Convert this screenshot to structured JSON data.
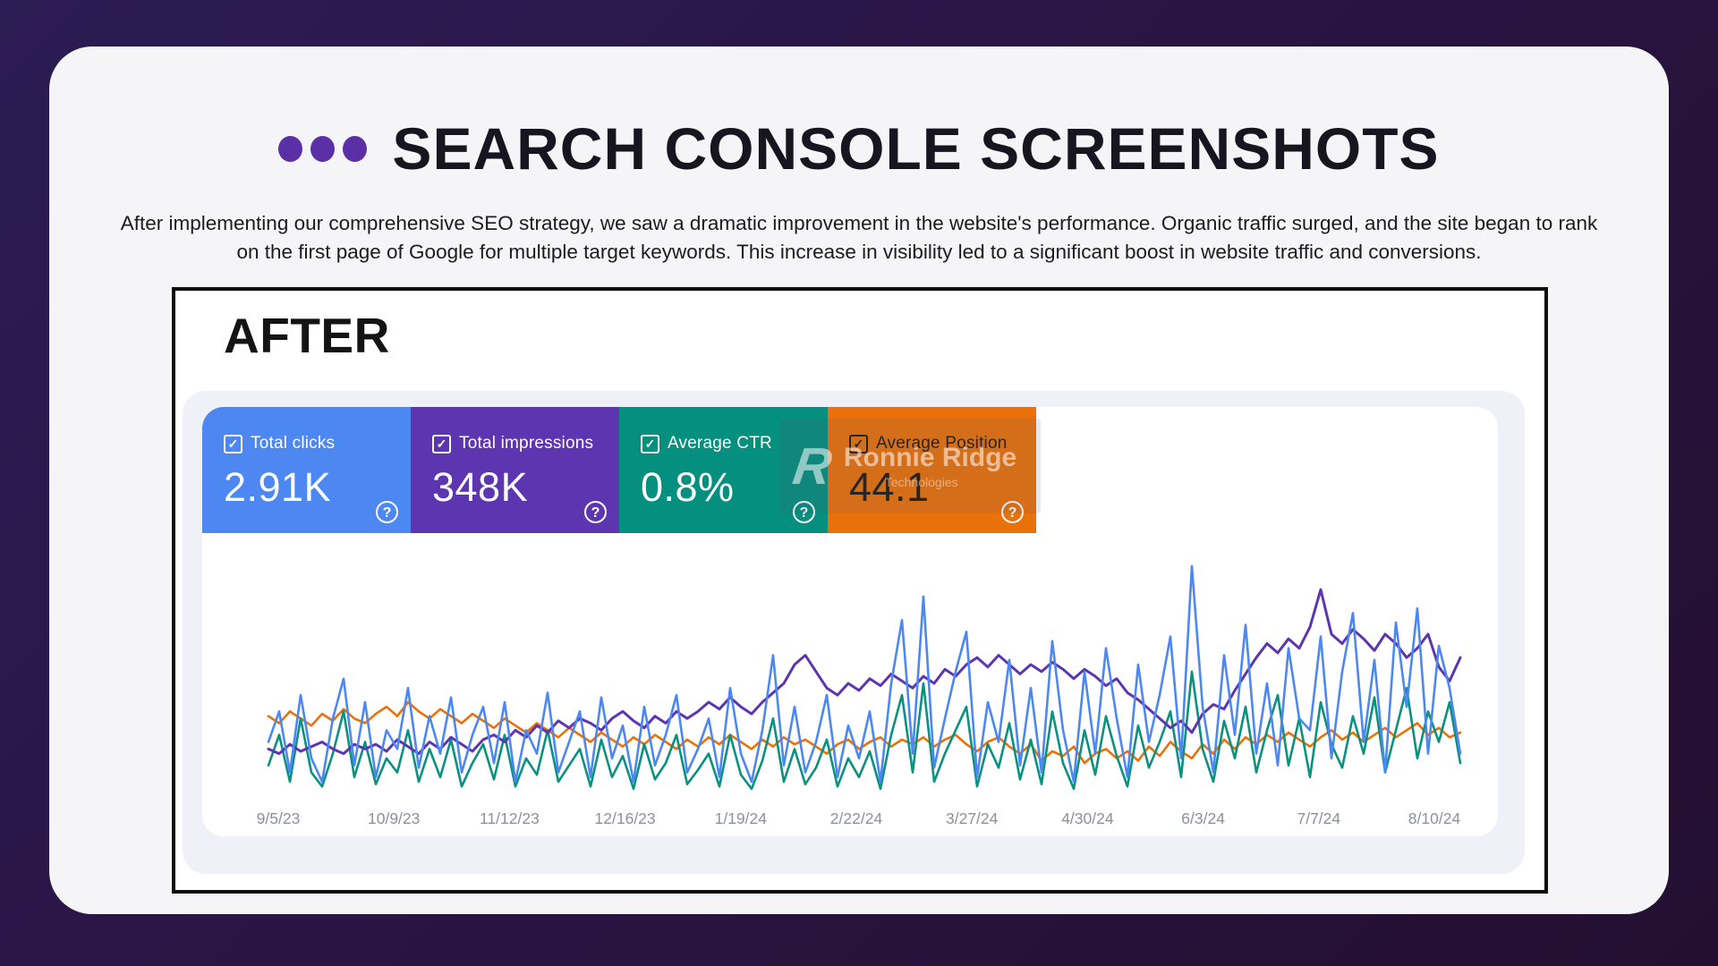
{
  "slide": {
    "title": "SEARCH CONSOLE SCREENSHOTS",
    "accent_color": "#5b2fa5",
    "description": "After implementing our comprehensive SEO strategy, we saw a dramatic improvement in the website's performance. Organic traffic surged, and the site began to rank on the first page of Google for multiple target keywords. This increase in visibility led to a significant boost in website traffic and conversions."
  },
  "screenshot": {
    "label": "AFTER",
    "watermark": {
      "logo": "R",
      "line1": "Ronnie Ridge",
      "line2": "Technologies"
    },
    "metrics": [
      {
        "label": "Total clicks",
        "value": "2.91K",
        "color": "#4d87f2",
        "text_color": "#ffffff",
        "checked": true,
        "help_icon": "?"
      },
      {
        "label": "Total impressions",
        "value": "348K",
        "color": "#5e35b1",
        "text_color": "#ffffff",
        "checked": true,
        "help_icon": "?"
      },
      {
        "label": "Average CTR",
        "value": "0.8%",
        "color": "#048f7e",
        "text_color": "#ffffff",
        "checked": true,
        "help_icon": "?"
      },
      {
        "label": "Average Position",
        "value": "44.1",
        "color": "#e8710a",
        "text_color": "#1d1d1d",
        "checked": true,
        "help_icon": "?"
      }
    ],
    "chart_data": {
      "type": "line",
      "title": "",
      "xlabel": "",
      "ylabel": "",
      "y_axis_visible": false,
      "grid": false,
      "legend_position": "metric-cards-above",
      "ylim": [
        0,
        100
      ],
      "x_tick_labels": [
        "9/5/23",
        "10/9/23",
        "11/12/23",
        "12/16/23",
        "1/19/24",
        "2/22/24",
        "3/27/24",
        "4/30/24",
        "6/3/24",
        "7/7/24",
        "8/10/24"
      ],
      "series": [
        {
          "name": "Total clicks",
          "color": "#4d87f2",
          "values": [
            25,
            38,
            12,
            45,
            18,
            8,
            35,
            52,
            15,
            42,
            10,
            30,
            22,
            48,
            14,
            36,
            20,
            44,
            12,
            28,
            40,
            16,
            42,
            8,
            30,
            20,
            46,
            12,
            25,
            38,
            10,
            44,
            18,
            32,
            8,
            40,
            15,
            28,
            45,
            12,
            22,
            35,
            10,
            48,
            20,
            8,
            30,
            62,
            15,
            40,
            12,
            25,
            45,
            10,
            32,
            18,
            38,
            8,
            50,
            77,
            20,
            87,
            14,
            35,
            55,
            72,
            10,
            42,
            25,
            60,
            15,
            48,
            12,
            68,
            30,
            8,
            55,
            20,
            65,
            35,
            10,
            58,
            25,
            45,
            70,
            18,
            100,
            40,
            12,
            62,
            28,
            75,
            20,
            50,
            15,
            65,
            35,
            30,
            70,
            18,
            55,
            80,
            25,
            60,
            12,
            76,
            40,
            82,
            20,
            66,
            48,
            20
          ]
        },
        {
          "name": "Total impressions",
          "color": "#5e35b1",
          "values": [
            22,
            20,
            24,
            21,
            23,
            25,
            22,
            20,
            24,
            22,
            24,
            21,
            26,
            23,
            20,
            25,
            22,
            27,
            24,
            21,
            26,
            28,
            25,
            30,
            27,
            32,
            29,
            34,
            31,
            35,
            33,
            30,
            35,
            38,
            34,
            31,
            36,
            33,
            38,
            35,
            38,
            42,
            39,
            44,
            40,
            37,
            42,
            46,
            50,
            58,
            62,
            55,
            48,
            45,
            50,
            47,
            52,
            49,
            54,
            51,
            48,
            53,
            50,
            56,
            53,
            58,
            61,
            57,
            62,
            58,
            54,
            58,
            55,
            59,
            56,
            52,
            56,
            53,
            49,
            52,
            46,
            43,
            39,
            35,
            31,
            34,
            29,
            37,
            41,
            39,
            47,
            54,
            61,
            67,
            63,
            69,
            65,
            74,
            90,
            71,
            67,
            73,
            69,
            64,
            71,
            67,
            61,
            65,
            71,
            57,
            51,
            61
          ]
        },
        {
          "name": "Average CTR",
          "color": "#0b9180",
          "values": [
            15,
            28,
            8,
            35,
            12,
            6,
            20,
            38,
            10,
            25,
            7,
            18,
            12,
            30,
            8,
            22,
            10,
            26,
            6,
            16,
            24,
            9,
            28,
            6,
            18,
            11,
            30,
            8,
            15,
            22,
            6,
            26,
            10,
            19,
            5,
            24,
            9,
            16,
            28,
            7,
            13,
            20,
            6,
            28,
            11,
            5,
            17,
            35,
            8,
            22,
            7,
            14,
            26,
            6,
            18,
            10,
            21,
            5,
            28,
            45,
            12,
            50,
            8,
            20,
            30,
            40,
            6,
            24,
            14,
            33,
            9,
            26,
            7,
            38,
            16,
            5,
            30,
            11,
            36,
            19,
            6,
            32,
            14,
            25,
            38,
            10,
            55,
            22,
            8,
            34,
            18,
            40,
            12,
            30,
            45,
            15,
            35,
            10,
            42,
            24,
            14,
            36,
            20,
            44,
            12,
            30,
            48,
            18,
            38,
            25,
            42,
            16
          ]
        },
        {
          "name": "Average Position",
          "color": "#e8710a",
          "values": [
            36,
            33,
            38,
            35,
            32,
            37,
            34,
            39,
            35,
            33,
            37,
            40,
            36,
            42,
            38,
            35,
            39,
            36,
            33,
            37,
            34,
            31,
            35,
            32,
            29,
            33,
            30,
            27,
            31,
            28,
            25,
            29,
            26,
            23,
            27,
            24,
            28,
            25,
            22,
            26,
            23,
            27,
            24,
            28,
            25,
            22,
            26,
            23,
            27,
            24,
            26,
            23,
            20,
            24,
            26,
            22,
            25,
            27,
            23,
            26,
            24,
            27,
            23,
            26,
            28,
            24,
            21,
            25,
            27,
            23,
            20,
            24,
            17,
            21,
            19,
            23,
            16,
            20,
            22,
            18,
            21,
            17,
            23,
            19,
            25,
            21,
            18,
            24,
            20,
            26,
            22,
            27,
            24,
            28,
            25,
            29,
            26,
            23,
            27,
            30,
            26,
            29,
            25,
            28,
            31,
            27,
            30,
            33,
            28,
            31,
            27,
            29
          ]
        }
      ]
    }
  }
}
